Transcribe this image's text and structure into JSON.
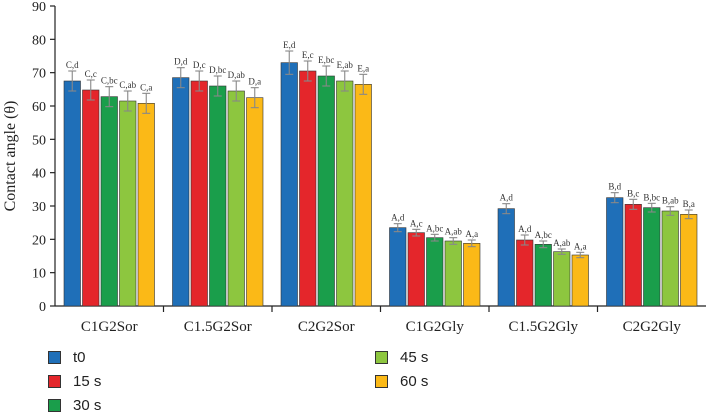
{
  "chart_data": {
    "type": "bar",
    "ylabel": "Contact angle (θ)",
    "ylim": [
      0,
      90
    ],
    "yticks": [
      0,
      10,
      20,
      30,
      40,
      50,
      60,
      70,
      80,
      90
    ],
    "categories": [
      "C1G2Sor",
      "C1.5G2Sor",
      "C2G2Sor",
      "C1G2Gly",
      "C1.5G2Gly",
      "C2G2Gly"
    ],
    "series": [
      {
        "name": "t0",
        "color": "#1f6fb8",
        "values": [
          67.5,
          68.5,
          73.0,
          23.5,
          29.2,
          32.5
        ],
        "errors": [
          3.0,
          3.0,
          3.5,
          1.2,
          1.5,
          1.5
        ],
        "labels": [
          "C,d",
          "D,d",
          "E,d",
          "A,d",
          "A,d",
          "B,d"
        ]
      },
      {
        "name": "15 s",
        "color": "#e4262b",
        "values": [
          64.8,
          67.5,
          70.5,
          22.0,
          19.8,
          30.5
        ],
        "errors": [
          3.0,
          3.0,
          3.0,
          1.0,
          1.5,
          1.5
        ],
        "labels": [
          "C,c",
          "D,c",
          "E,c",
          "A,c",
          "A,d",
          "B,c"
        ]
      },
      {
        "name": "30 s",
        "color": "#1a9e4b",
        "values": [
          62.8,
          66.0,
          69.0,
          20.5,
          18.5,
          29.5
        ],
        "errors": [
          3.0,
          3.0,
          3.0,
          1.0,
          1.0,
          1.3
        ],
        "labels": [
          "C,bc",
          "D,bc",
          "E,bc",
          "A,bc",
          "A,bc",
          "B,bc"
        ]
      },
      {
        "name": "45 s",
        "color": "#8dc63f",
        "values": [
          61.5,
          64.5,
          67.5,
          19.5,
          16.3,
          28.5
        ],
        "errors": [
          3.0,
          3.0,
          3.0,
          1.0,
          0.8,
          1.3
        ],
        "labels": [
          "C,ab",
          "D,ab",
          "E,ab",
          "A,ab",
          "A,ab",
          "B,ab"
        ]
      },
      {
        "name": "60 s",
        "color": "#fbb917",
        "values": [
          60.8,
          62.5,
          66.5,
          18.8,
          15.3,
          27.5
        ],
        "errors": [
          3.0,
          3.0,
          3.0,
          1.0,
          0.8,
          1.3
        ],
        "labels": [
          "C,a",
          "D,a",
          "E,a",
          "A,a",
          "A,a",
          "B,a"
        ]
      }
    ],
    "legend": {
      "position": "bottom",
      "columns": 2
    }
  }
}
